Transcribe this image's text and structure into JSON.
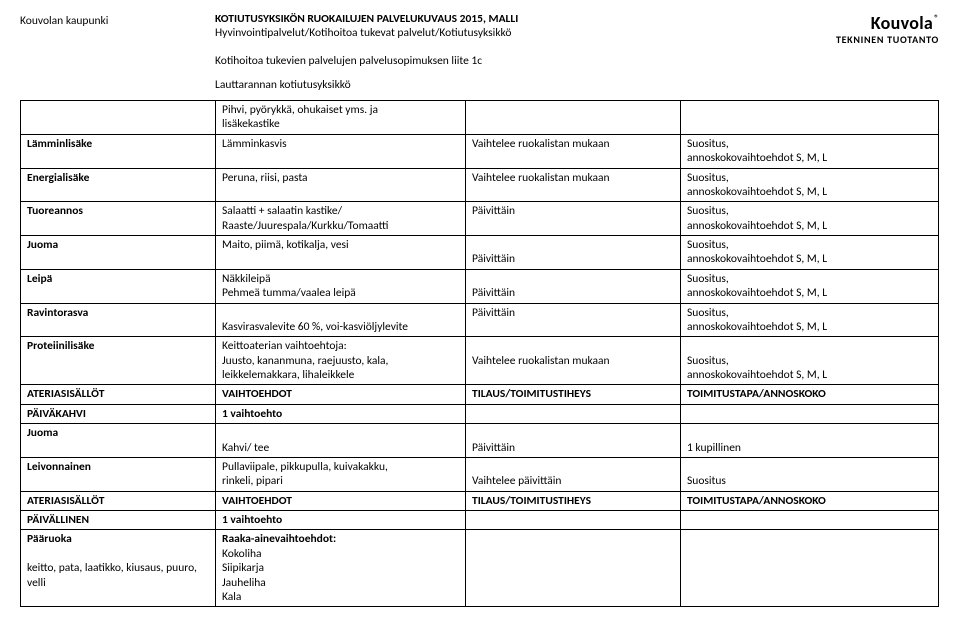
{
  "header": {
    "left": "Kouvolan kaupunki",
    "title": "KOTIUTUSYKSIKÖN RUOKAILUJEN PALVELUKUVAUS 2015, MALLI",
    "sub": "Hyvinvointipalvelut/Kotihoitoa tukevat palvelut/Kotiutusyksikkö",
    "liite": "Kotihoitoa tukevien palvelujen palvelusopimuksen liite 1c",
    "unit": "Lauttarannan kotiutusyksikkö",
    "logo": "Kouvola",
    "logo_reg": "®",
    "logo_sub": "TEKNINEN TUOTANTO"
  },
  "rows": {
    "r0": {
      "c2a": "Pihvi, pyörykkä, ohukaiset yms. ja",
      "c2b": "lisäkekastike"
    },
    "r1": {
      "c1": "Lämminlisäke",
      "c2": "Lämminkasvis",
      "c3": "Vaihtelee ruokalistan mukaan",
      "c4a": "Suositus,",
      "c4b": "annoskokovaihtoehdot S, M, L"
    },
    "r2": {
      "c1": "Energialisäke",
      "c2": "Peruna, riisi, pasta",
      "c3": "Vaihtelee ruokalistan mukaan",
      "c4a": "Suositus,",
      "c4b": "annoskokovaihtoehdot S, M, L"
    },
    "r3": {
      "c1": "Tuoreannos",
      "c2a": "Salaatti + salaatin kastike/",
      "c2b": "Raaste/Juurespala/Kurkku/Tomaatti",
      "c3": "Päivittäin",
      "c4a": "Suositus,",
      "c4b": "annoskokovaihtoehdot S, M, L"
    },
    "r4": {
      "c1": "Juoma",
      "c2": "Maito, piimä, kotikalja, vesi",
      "c3": "Päivittäin",
      "c4a": "Suositus,",
      "c4b": "annoskokovaihtoehdot S, M, L"
    },
    "r5": {
      "c1": "Leipä",
      "c2a": "Näkkileipä",
      "c2b": "Pehmeä tumma/vaalea leipä",
      "c3": "Päivittäin",
      "c4a": "Suositus,",
      "c4b": "annoskokovaihtoehdot S, M, L"
    },
    "r6": {
      "c1": "Ravintorasva",
      "c2": "Kasvirasvalevite 60 %, voi-kasviöljylevite",
      "c3": "Päivittäin",
      "c4a": "Suositus,",
      "c4b": "annoskokovaihtoehdot S, M, L"
    },
    "r7": {
      "c1": "Proteiinilisäke",
      "c2a": "Keittoaterian vaihtoehtoja:",
      "c2b": "Juusto, kananmuna, raejuusto, kala,",
      "c2c": "leikkelemakkara, lihaleikkele",
      "c3": "Vaihtelee ruokalistan mukaan",
      "c4a": "Suositus,",
      "c4b": "annoskokovaihtoehdot S, M, L"
    },
    "r8": {
      "c1": "ATERIASISÄLLÖT",
      "c2": "VAIHTOEHDOT",
      "c3": "TILAUS/TOIMITUSTIHEYS",
      "c4": "TOIMITUSTAPA/ANNOSKOKO"
    },
    "r9": {
      "c1": "PÄIVÄKAHVI",
      "c2": "1 vaihtoehto"
    },
    "r10": {
      "c1": "Juoma",
      "c2": "Kahvi/ tee",
      "c3": "Päivittäin",
      "c4": "1 kupillinen"
    },
    "r11": {
      "c1": "Leivonnainen",
      "c2a": "Pullaviipale, pikkupulla, kuivakakku,",
      "c2b": "rinkeli, pipari",
      "c3": "Vaihtelee päivittäin",
      "c4": "Suositus"
    },
    "r12": {
      "c1": "ATERIASISÄLLÖT",
      "c2": "VAIHTOEHDOT",
      "c3": "TILAUS/TOIMITUSTIHEYS",
      "c4": "TOIMITUSTAPA/ANNOSKOKO"
    },
    "r13": {
      "c1": "PÄIVÄLLINEN",
      "c2": "1 vaihtoehto"
    },
    "r14": {
      "c1a": "Pääruoka",
      "c1b": "",
      "c1c": "keitto, pata, laatikko, kiusaus, puuro,",
      "c1d": "velli",
      "c2a": "Raaka-ainevaihtoehdot:",
      "c2b": "Kokoliha",
      "c2c": "Siipikarja",
      "c2d": "Jauheliha",
      "c2e": "Kala"
    }
  }
}
